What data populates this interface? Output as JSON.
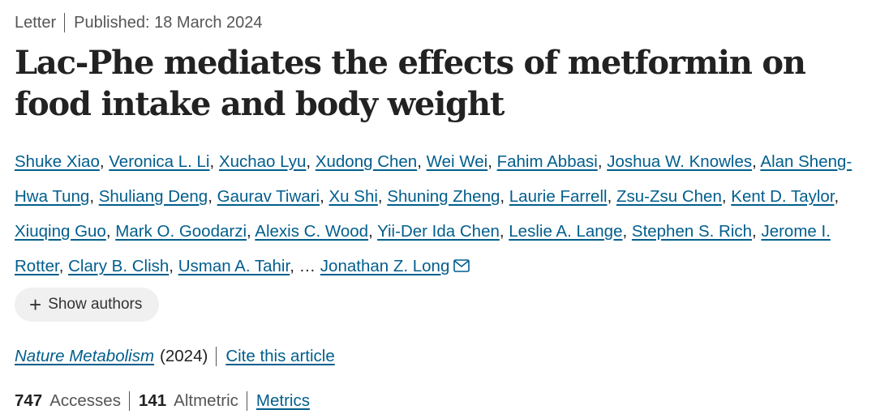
{
  "article_meta": {
    "type": "Letter",
    "published": "Published: 18 March 2024"
  },
  "title": "Lac-Phe mediates the effects of metformin on food intake and body weight",
  "authors": [
    "Shuke Xiao",
    "Veronica L. Li",
    "Xuchao Lyu",
    "Xudong Chen",
    "Wei Wei",
    "Fahim Abbasi",
    "Joshua W. Knowles",
    "Alan Sheng-Hwa Tung",
    "Shuliang Deng",
    "Gaurav Tiwari",
    "Xu Shi",
    "Shuning Zheng",
    "Laurie Farrell",
    "Zsu-Zsu Chen",
    "Kent D. Taylor",
    "Xiuqing Guo",
    "Mark O. Goodarzi",
    "Alexis C. Wood",
    "Yii-Der Ida Chen",
    "Leslie A. Lange",
    "Stephen S. Rich",
    "Jerome I. Rotter",
    "Clary B. Clish",
    "Usman A. Tahir"
  ],
  "authors_ellipsis": "…",
  "corresponding_author": "Jonathan Z. Long",
  "corresponding_icon": "mail-icon",
  "show_authors": {
    "icon": "plus-icon",
    "label": "Show authors"
  },
  "journal": {
    "name": "Nature Metabolism",
    "year": "(2024)",
    "cite_label": "Cite this article"
  },
  "metrics": {
    "accesses_count": "747",
    "accesses_label": "Accesses",
    "altmetric_count": "141",
    "altmetric_label": "Altmetric",
    "metrics_link": "Metrics"
  }
}
